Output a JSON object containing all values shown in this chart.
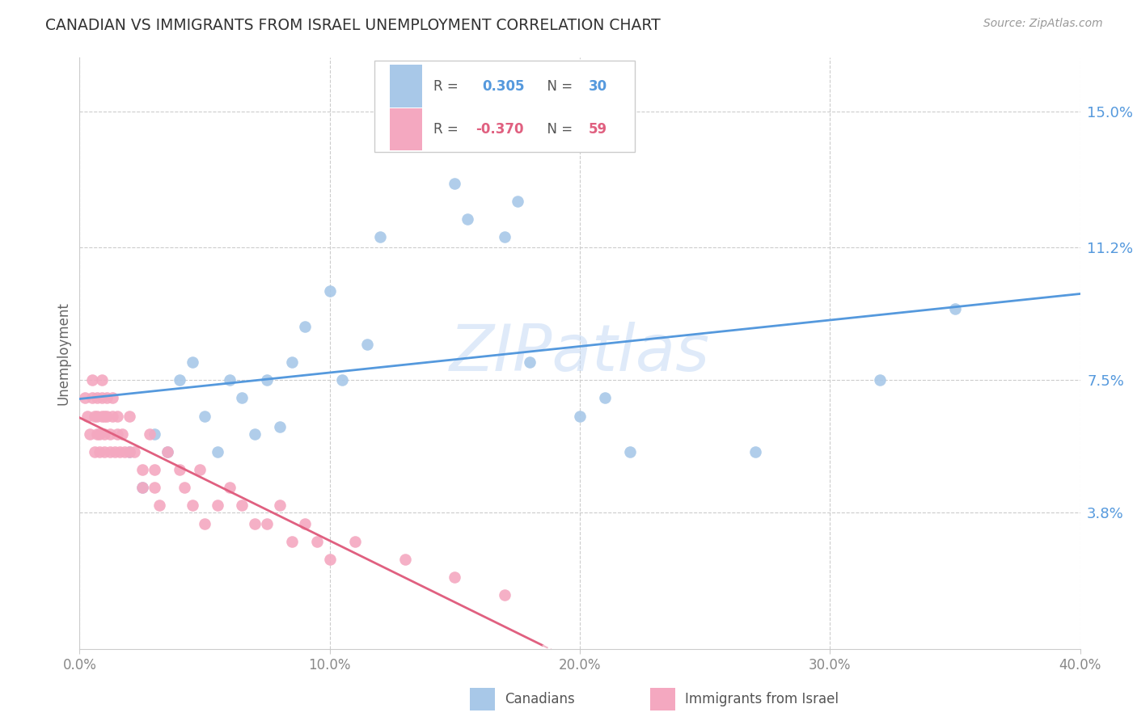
{
  "title": "CANADIAN VS IMMIGRANTS FROM ISRAEL UNEMPLOYMENT CORRELATION CHART",
  "source": "Source: ZipAtlas.com",
  "ylabel": "Unemployment",
  "ytick_labels": [
    "15.0%",
    "11.2%",
    "7.5%",
    "3.8%"
  ],
  "ytick_values": [
    0.15,
    0.112,
    0.075,
    0.038
  ],
  "xtick_labels": [
    "0.0%",
    "10.0%",
    "20.0%",
    "30.0%",
    "40.0%"
  ],
  "xtick_positions": [
    0.0,
    0.1,
    0.2,
    0.3,
    0.4
  ],
  "xmin": 0.0,
  "xmax": 0.4,
  "ymin": 0.0,
  "ymax": 0.165,
  "color_canadian": "#a8c8e8",
  "color_israel": "#f4a8c0",
  "color_canadian_line": "#5599dd",
  "color_israel_line": "#e06080",
  "color_israel_line_dashed": "#f0b8c8",
  "watermark": "ZIPatlas",
  "canadians_x": [
    0.02,
    0.025,
    0.03,
    0.035,
    0.04,
    0.045,
    0.05,
    0.055,
    0.06,
    0.065,
    0.07,
    0.075,
    0.08,
    0.085,
    0.09,
    0.1,
    0.105,
    0.115,
    0.12,
    0.15,
    0.155,
    0.17,
    0.175,
    0.18,
    0.2,
    0.21,
    0.22,
    0.27,
    0.32,
    0.35
  ],
  "canadians_y": [
    0.055,
    0.045,
    0.06,
    0.055,
    0.075,
    0.08,
    0.065,
    0.055,
    0.075,
    0.07,
    0.06,
    0.075,
    0.062,
    0.08,
    0.09,
    0.1,
    0.075,
    0.085,
    0.115,
    0.13,
    0.12,
    0.115,
    0.125,
    0.08,
    0.065,
    0.07,
    0.055,
    0.055,
    0.075,
    0.095
  ],
  "israel_x": [
    0.002,
    0.003,
    0.004,
    0.005,
    0.005,
    0.006,
    0.006,
    0.007,
    0.007,
    0.007,
    0.008,
    0.008,
    0.009,
    0.009,
    0.009,
    0.01,
    0.01,
    0.01,
    0.011,
    0.011,
    0.012,
    0.012,
    0.013,
    0.013,
    0.014,
    0.015,
    0.015,
    0.016,
    0.017,
    0.018,
    0.02,
    0.02,
    0.022,
    0.025,
    0.025,
    0.028,
    0.03,
    0.03,
    0.032,
    0.035,
    0.04,
    0.042,
    0.045,
    0.048,
    0.05,
    0.055,
    0.06,
    0.065,
    0.07,
    0.075,
    0.08,
    0.085,
    0.09,
    0.095,
    0.1,
    0.11,
    0.13,
    0.15,
    0.17
  ],
  "israel_y": [
    0.07,
    0.065,
    0.06,
    0.07,
    0.075,
    0.055,
    0.065,
    0.06,
    0.07,
    0.065,
    0.055,
    0.06,
    0.065,
    0.07,
    0.075,
    0.065,
    0.06,
    0.055,
    0.065,
    0.07,
    0.06,
    0.055,
    0.07,
    0.065,
    0.055,
    0.06,
    0.065,
    0.055,
    0.06,
    0.055,
    0.065,
    0.055,
    0.055,
    0.045,
    0.05,
    0.06,
    0.05,
    0.045,
    0.04,
    0.055,
    0.05,
    0.045,
    0.04,
    0.05,
    0.035,
    0.04,
    0.045,
    0.04,
    0.035,
    0.035,
    0.04,
    0.03,
    0.035,
    0.03,
    0.025,
    0.03,
    0.025,
    0.02,
    0.015
  ]
}
